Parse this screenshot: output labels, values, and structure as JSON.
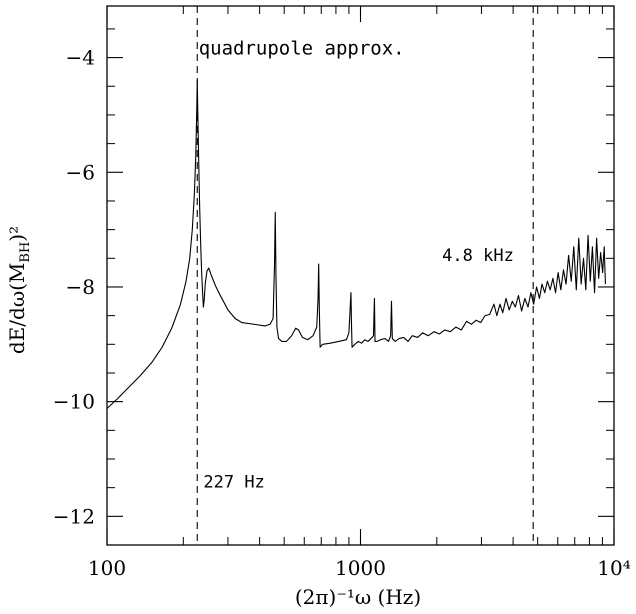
{
  "chart_data": {
    "type": "line",
    "title": "",
    "xlabel": "(2π)⁻¹ω  (Hz)",
    "ylabel_main": "dE/dω(M",
    "ylabel_sub": "BH",
    "ylabel_tail": ")²",
    "xscale": "log",
    "xlim": [
      100,
      10000
    ],
    "ylim": [
      -12.5,
      -3.1
    ],
    "grid": false,
    "x_ticks": [
      {
        "value": 100,
        "label": "100"
      },
      {
        "value": 1000,
        "label": "1000"
      },
      {
        "value": 10000,
        "label": "10⁴"
      }
    ],
    "y_ticks": [
      {
        "value": -4,
        "label": "−4"
      },
      {
        "value": -6,
        "label": "−6"
      },
      {
        "value": -8,
        "label": "−8"
      },
      {
        "value": -10,
        "label": "−10"
      },
      {
        "value": -12,
        "label": "−12"
      }
    ],
    "vertical_lines": [
      {
        "x": 227,
        "style": "dashed"
      },
      {
        "x": 4800,
        "style": "dashed"
      }
    ],
    "annotations": [
      {
        "text": "quadrupole approx.",
        "x": 230,
        "y": -3.95
      },
      {
        "text": "4.8 kHz",
        "x": 2100,
        "y": -7.55
      },
      {
        "text": "227 Hz",
        "x": 240,
        "y": -11.5
      }
    ],
    "series": [
      {
        "line_style": "solid",
        "points": [
          [
            100,
            -10.12
          ],
          [
            110,
            -9.95
          ],
          [
            120,
            -9.78
          ],
          [
            135,
            -9.55
          ],
          [
            150,
            -9.32
          ],
          [
            165,
            -9.05
          ],
          [
            180,
            -8.72
          ],
          [
            195,
            -8.3
          ],
          [
            205,
            -7.9
          ],
          [
            212,
            -7.5
          ],
          [
            217,
            -7.0
          ],
          [
            221,
            -6.4
          ],
          [
            224,
            -5.7
          ],
          [
            226,
            -4.9
          ],
          [
            227,
            -4.4
          ],
          [
            228,
            -4.9
          ],
          [
            230,
            -5.8
          ],
          [
            232,
            -6.6
          ],
          [
            234,
            -7.2
          ],
          [
            236,
            -7.7
          ],
          [
            238,
            -8.05
          ],
          [
            240,
            -8.35
          ],
          [
            242,
            -8.2
          ],
          [
            244,
            -7.95
          ],
          [
            248,
            -7.72
          ],
          [
            252,
            -7.67
          ],
          [
            258,
            -7.8
          ],
          [
            268,
            -7.98
          ],
          [
            280,
            -8.15
          ],
          [
            300,
            -8.4
          ],
          [
            320,
            -8.55
          ],
          [
            340,
            -8.62
          ],
          [
            380,
            -8.65
          ],
          [
            420,
            -8.68
          ],
          [
            440,
            -8.65
          ],
          [
            452,
            -8.55
          ],
          [
            458,
            -7.6
          ],
          [
            461,
            -6.7
          ],
          [
            464,
            -7.8
          ],
          [
            468,
            -8.7
          ],
          [
            475,
            -8.9
          ],
          [
            490,
            -8.95
          ],
          [
            510,
            -8.95
          ],
          [
            535,
            -8.85
          ],
          [
            555,
            -8.72
          ],
          [
            570,
            -8.75
          ],
          [
            590,
            -8.88
          ],
          [
            620,
            -8.92
          ],
          [
            650,
            -8.85
          ],
          [
            672,
            -8.7
          ],
          [
            680,
            -8.2
          ],
          [
            684,
            -7.6
          ],
          [
            688,
            -8.4
          ],
          [
            693,
            -9.05
          ],
          [
            710,
            -9.0
          ],
          [
            760,
            -8.98
          ],
          [
            820,
            -8.95
          ],
          [
            880,
            -8.92
          ],
          [
            900,
            -8.8
          ],
          [
            912,
            -8.3
          ],
          [
            917,
            -8.1
          ],
          [
            921,
            -8.6
          ],
          [
            926,
            -9.05
          ],
          [
            950,
            -9.0
          ],
          [
            980,
            -8.95
          ],
          [
            1010,
            -8.98
          ],
          [
            1040,
            -8.92
          ],
          [
            1070,
            -8.95
          ],
          [
            1100,
            -8.9
          ],
          [
            1125,
            -8.85
          ],
          [
            1135,
            -8.2
          ],
          [
            1141,
            -8.95
          ],
          [
            1160,
            -8.95
          ],
          [
            1200,
            -8.92
          ],
          [
            1250,
            -8.9
          ],
          [
            1290,
            -8.95
          ],
          [
            1315,
            -8.85
          ],
          [
            1325,
            -8.25
          ],
          [
            1335,
            -8.9
          ],
          [
            1370,
            -8.95
          ],
          [
            1420,
            -8.9
          ],
          [
            1480,
            -8.88
          ],
          [
            1540,
            -8.95
          ],
          [
            1600,
            -8.85
          ],
          [
            1680,
            -8.88
          ],
          [
            1760,
            -8.8
          ],
          [
            1850,
            -8.85
          ],
          [
            1950,
            -8.78
          ],
          [
            2050,
            -8.82
          ],
          [
            2150,
            -8.75
          ],
          [
            2260,
            -8.78
          ],
          [
            2380,
            -8.7
          ],
          [
            2500,
            -8.75
          ],
          [
            2620,
            -8.6
          ],
          [
            2740,
            -8.65
          ],
          [
            2860,
            -8.58
          ],
          [
            2980,
            -8.62
          ],
          [
            3100,
            -8.5
          ],
          [
            3230,
            -8.48
          ],
          [
            3360,
            -8.3
          ],
          [
            3450,
            -8.5
          ],
          [
            3550,
            -8.3
          ],
          [
            3640,
            -8.45
          ],
          [
            3750,
            -8.2
          ],
          [
            3860,
            -8.4
          ],
          [
            3970,
            -8.25
          ],
          [
            4080,
            -8.35
          ],
          [
            4200,
            -8.15
          ],
          [
            4320,
            -8.42
          ],
          [
            4450,
            -8.2
          ],
          [
            4580,
            -8.35
          ],
          [
            4700,
            -8.1
          ],
          [
            4820,
            -8.3
          ],
          [
            4950,
            -8.0
          ],
          [
            5080,
            -8.2
          ],
          [
            5200,
            -7.95
          ],
          [
            5330,
            -8.1
          ],
          [
            5460,
            -7.9
          ],
          [
            5600,
            -8.05
          ],
          [
            5740,
            -7.85
          ],
          [
            5880,
            -8.1
          ],
          [
            6020,
            -7.75
          ],
          [
            6170,
            -8.05
          ],
          [
            6320,
            -7.7
          ],
          [
            6470,
            -7.95
          ],
          [
            6620,
            -7.45
          ],
          [
            6780,
            -7.9
          ],
          [
            6940,
            -7.3
          ],
          [
            7100,
            -8.05
          ],
          [
            7260,
            -7.15
          ],
          [
            7420,
            -7.95
          ],
          [
            7580,
            -7.5
          ],
          [
            7740,
            -8.05
          ],
          [
            7900,
            -7.1
          ],
          [
            8060,
            -7.9
          ],
          [
            8220,
            -7.3
          ],
          [
            8380,
            -8.1
          ],
          [
            8540,
            -7.15
          ],
          [
            8700,
            -7.85
          ],
          [
            8860,
            -7.4
          ],
          [
            9020,
            -7.75
          ],
          [
            9150,
            -7.3
          ],
          [
            9250,
            -7.95
          ]
        ]
      }
    ]
  }
}
